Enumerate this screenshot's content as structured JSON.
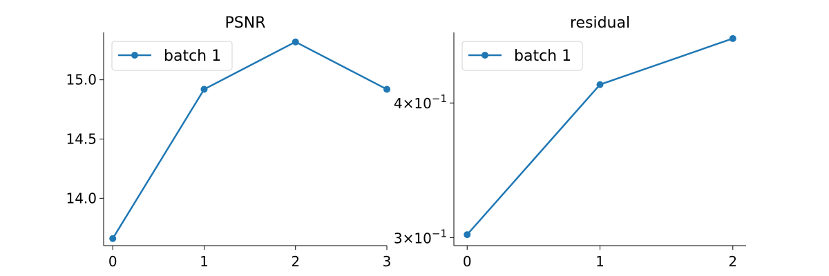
{
  "chart_data": [
    {
      "type": "line",
      "title": "PSNR",
      "xlabel": "",
      "ylabel": "",
      "x": [
        0,
        1,
        2,
        3
      ],
      "xlim": [
        -0.1,
        3.0
      ],
      "ylim": [
        13.6,
        15.4
      ],
      "xticks": [
        0,
        1,
        2,
        3
      ],
      "xtick_labels": [
        "0",
        "1",
        "2",
        "3"
      ],
      "yscale": "linear",
      "yticks": [
        14.0,
        14.5,
        15.0
      ],
      "ytick_labels": [
        "14.0",
        "14.5",
        "15.0"
      ],
      "legend_position": "top-left",
      "grid": false,
      "series": [
        {
          "name": "batch 1",
          "color": "#1f77b4",
          "marker": "circle",
          "values": [
            13.66,
            14.92,
            15.32,
            14.92
          ]
        }
      ]
    },
    {
      "type": "line",
      "title": "residual",
      "xlabel": "",
      "ylabel": "",
      "x": [
        0,
        1,
        2
      ],
      "xlim": [
        -0.1,
        2.1
      ],
      "ylim": [
        0.295,
        0.465
      ],
      "xticks": [
        0,
        1,
        2
      ],
      "xtick_labels": [
        "0",
        "1",
        "2"
      ],
      "yscale": "log",
      "yticks": [
        0.3,
        0.4
      ],
      "ytick_labels": [
        {
          "mantissa": "3",
          "exponent": "−1"
        },
        {
          "mantissa": "4",
          "exponent": "−1"
        }
      ],
      "legend_position": "top-left",
      "grid": false,
      "series": [
        {
          "name": "batch 1",
          "color": "#1f77b4",
          "marker": "circle",
          "values": [
            0.302,
            0.416,
            0.459
          ]
        }
      ]
    }
  ]
}
